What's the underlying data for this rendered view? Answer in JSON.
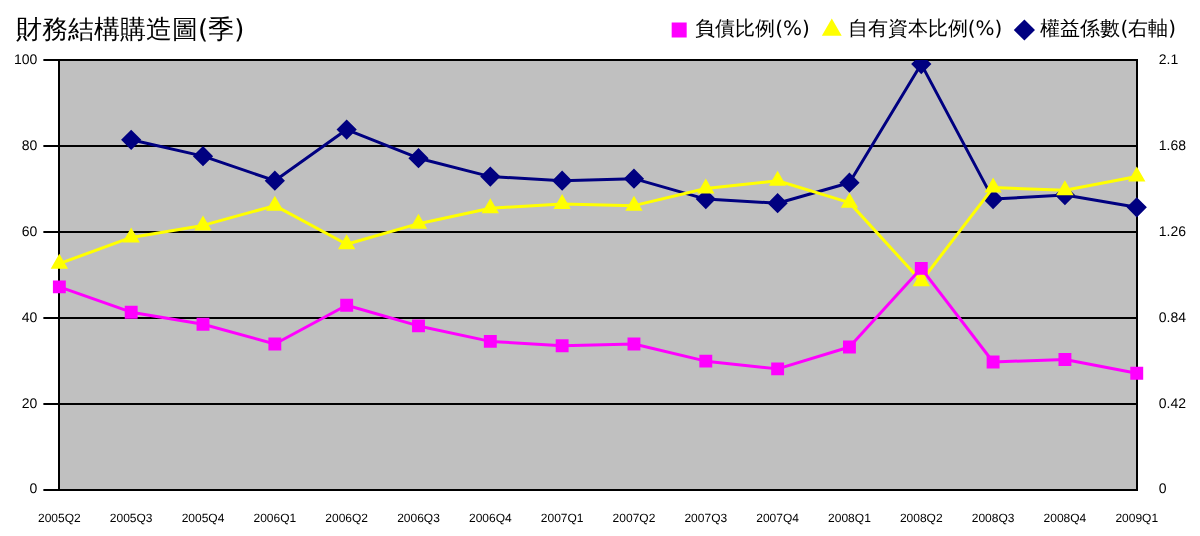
{
  "chart_data": {
    "type": "line",
    "title": "財務結構購造圖(季)",
    "categories": [
      "2005Q2",
      "2005Q3",
      "2005Q4",
      "2006Q1",
      "2006Q2",
      "2006Q3",
      "2006Q4",
      "2007Q1",
      "2007Q2",
      "2007Q3",
      "2007Q4",
      "2008Q1",
      "2008Q2",
      "2008Q3",
      "2008Q4",
      "2009Q1"
    ],
    "series": [
      {
        "name": "負債比例(%)",
        "color": "#ff00ff",
        "marker": "square",
        "values": [
          47.2,
          41.3,
          38.5,
          33.9,
          42.9,
          38.1,
          34.5,
          33.5,
          33.9,
          29.9,
          28.1,
          33.2,
          51.5,
          29.7,
          30.3,
          27.1
        ]
      },
      {
        "name": "自有資本比例(%)",
        "color": "#ffff00",
        "marker": "triangle",
        "values": [
          52.6,
          58.7,
          61.5,
          66.1,
          57.1,
          61.9,
          65.5,
          66.5,
          66.1,
          70.1,
          71.9,
          66.8,
          48.5,
          70.3,
          69.7,
          72.9
        ]
      },
      {
        "name": "權益係數(右軸)",
        "color": "#000080",
        "marker": "diamond",
        "axis": "y2",
        "values": [
          null,
          1.71,
          1.63,
          1.51,
          1.76,
          1.62,
          1.53,
          1.51,
          1.52,
          1.42,
          1.4,
          1.5,
          2.08,
          1.42,
          1.44,
          1.38
        ]
      }
    ],
    "ylim": [
      0,
      100
    ],
    "yticks": [
      0,
      20,
      40,
      60,
      80,
      100
    ],
    "y2lim": [
      0,
      2.1
    ],
    "y2ticks": [
      0,
      0.42,
      0.84,
      1.26,
      1.68,
      2.1
    ],
    "grid": "y",
    "legend": "top right"
  }
}
